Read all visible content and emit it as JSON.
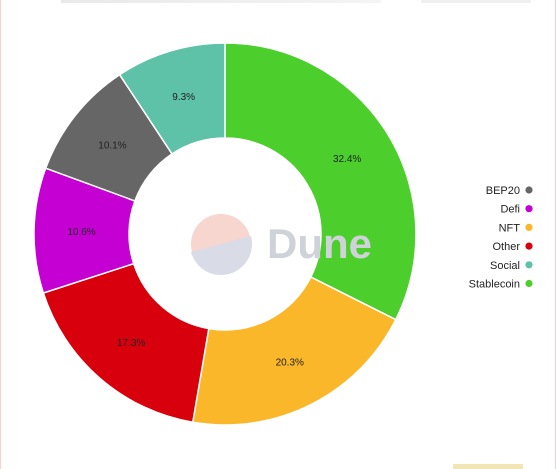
{
  "chart_data": {
    "type": "pie",
    "donut": true,
    "title": "",
    "categories": [
      "BEP20",
      "Defi",
      "NFT",
      "Other",
      "Social",
      "Stablecoin"
    ],
    "slices": [
      {
        "name": "Stablecoin",
        "value": 32.4,
        "label": "32.4%",
        "color": "#4ccf2d"
      },
      {
        "name": "NFT",
        "value": 20.3,
        "label": "20.3%",
        "color": "#fbb72a"
      },
      {
        "name": "Other",
        "value": 17.3,
        "label": "17.3%",
        "color": "#d9000d"
      },
      {
        "name": "Defi",
        "value": 10.6,
        "label": "10.6%",
        "color": "#c400d3"
      },
      {
        "name": "BEP20",
        "value": 10.1,
        "label": "10.1%",
        "color": "#666666"
      },
      {
        "name": "Social",
        "value": 9.3,
        "label": "9.3%",
        "color": "#5ec2a8"
      }
    ],
    "legend": {
      "placement": "right",
      "items": [
        {
          "name": "BEP20",
          "color": "#666666"
        },
        {
          "name": "Defi",
          "color": "#c400d3"
        },
        {
          "name": "NFT",
          "color": "#fbb72a"
        },
        {
          "name": "Other",
          "color": "#d9000d"
        },
        {
          "name": "Social",
          "color": "#5ec2a8"
        },
        {
          "name": "Stablecoin",
          "color": "#4ccf2d"
        }
      ]
    },
    "watermark": "Dune"
  }
}
